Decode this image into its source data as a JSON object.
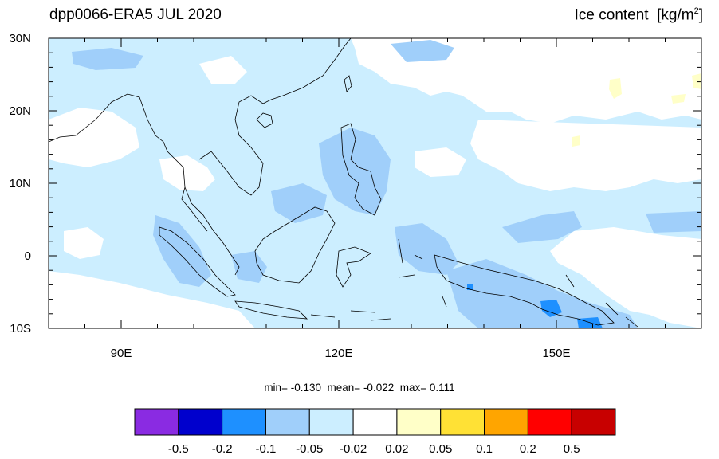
{
  "title": "dpp0066-ERA5 JUL 2020",
  "variable": "Ice content",
  "units_prefix": "[kg/m",
  "units_exp": "2",
  "units_suffix": "]",
  "stats": {
    "min_label": "min=",
    "min": "-0.130",
    "mean_label": "mean=",
    "mean": "-0.022",
    "max_label": "max=",
    "max": "0.111"
  },
  "map": {
    "lon_range": [
      80,
      170
    ],
    "lat_range": [
      -10,
      30
    ],
    "lon_ticks": [
      {
        "value": 90,
        "label": "90E"
      },
      {
        "value": 120,
        "label": "120E"
      },
      {
        "value": 150,
        "label": "150E"
      }
    ],
    "lat_ticks": [
      {
        "value": 30,
        "label": "30N"
      },
      {
        "value": 20,
        "label": "20N"
      },
      {
        "value": 10,
        "label": "10N"
      },
      {
        "value": 0,
        "label": "0"
      },
      {
        "value": -10,
        "label": "10S"
      }
    ]
  },
  "colorbar": {
    "colors": [
      "#8a2be2",
      "#0000cd",
      "#1e90ff",
      "#a0cffa",
      "#cceeff",
      "#ffffff",
      "#ffffc8",
      "#ffe135",
      "#ffa500",
      "#ff0000",
      "#c80000"
    ],
    "labels": [
      "-0.5",
      "-0.2",
      "-0.1",
      "-0.05",
      "-0.02",
      "0.02",
      "0.05",
      "0.1",
      "0.2",
      "0.5"
    ]
  },
  "field_colors": {
    "light": "#cceeff",
    "medium": "#a0cffa",
    "strong": "#1e90ff",
    "positive": "#ffffc8"
  }
}
